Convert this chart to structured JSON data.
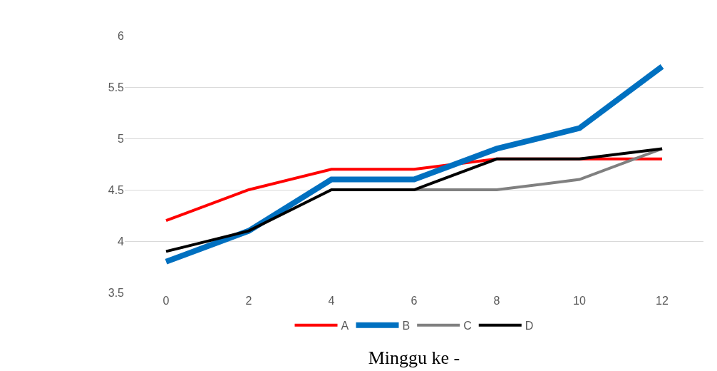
{
  "chart_data": {
    "type": "line",
    "xlabel": "Minggu ke -",
    "categories": [
      "0",
      "2",
      "4",
      "6",
      "8",
      "10",
      "12"
    ],
    "series": [
      {
        "name": "A",
        "color": "#ff0000",
        "values": [
          4.2,
          4.5,
          4.7,
          4.7,
          4.8,
          4.8,
          4.8
        ]
      },
      {
        "name": "B",
        "color": "#0070c0",
        "values": [
          3.8,
          4.1,
          4.6,
          4.6,
          4.9,
          5.1,
          5.7
        ]
      },
      {
        "name": "C",
        "color": "#808080",
        "values": [
          null,
          null,
          4.5,
          4.5,
          4.5,
          4.6,
          4.9
        ]
      },
      {
        "name": "D",
        "color": "#000000",
        "values": [
          3.9,
          4.1,
          4.5,
          4.5,
          4.8,
          4.8,
          4.9
        ]
      }
    ],
    "ylim": [
      3.5,
      6
    ],
    "yticks": [
      3.5,
      4,
      4.5,
      5,
      5.5,
      6
    ],
    "grid": "y",
    "legend": "bottom",
    "marker": "none",
    "line_style": "solid"
  }
}
